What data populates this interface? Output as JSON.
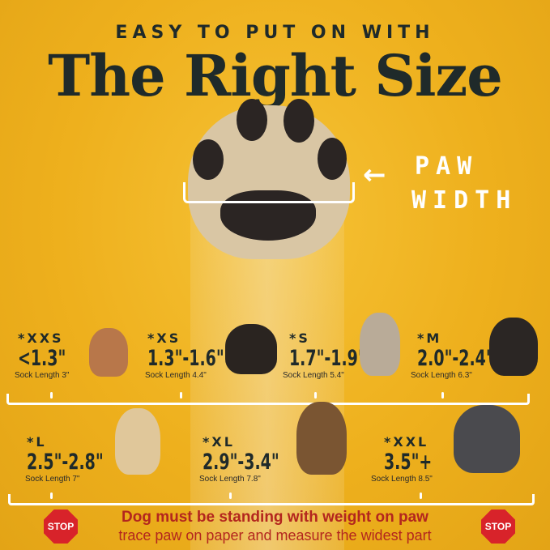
{
  "header": {
    "kicker": "EASY TO PUT ON WITH",
    "title": "The Right Size"
  },
  "paw_label": {
    "line1": "PAW",
    "line2": "WIDTH",
    "arrow_icon": "arrow-left"
  },
  "sizes": [
    {
      "size": "*XXS",
      "range": "<1.3\"",
      "sock": "Sock Length 3\""
    },
    {
      "size": "*XS",
      "range": "1.3\"-1.6\"",
      "sock": "Sock Length 4.4\""
    },
    {
      "size": "*S",
      "range": "1.7\"-1.9\"",
      "sock": "Sock Length 5.4\""
    },
    {
      "size": "*M",
      "range": "2.0\"-2.4\"",
      "sock": "Sock Length 6.3\""
    },
    {
      "size": "*L",
      "range": "2.5\"-2.8\"",
      "sock": "Sock Length 7\""
    },
    {
      "size": "*XL",
      "range": "2.9\"-3.4\"",
      "sock": "Sock Length 7.8\""
    },
    {
      "size": "*XXL",
      "range": "3.5\"+",
      "sock": "Sock Length 8.5\""
    }
  ],
  "dog_colors": [
    "#b8774a",
    "#2a2420",
    "#b9ab98",
    "#2b2624",
    "#e0c79a",
    "#7a5532",
    "#4a4a4e"
  ],
  "warning": {
    "stop": "STOP",
    "line1": "Dog must be standing with weight on paw",
    "line2": "trace paw on paper and measure the widest part"
  },
  "colors": {
    "background": "#eeb01d",
    "title": "#1f2a2a",
    "warning": "#b3261e",
    "stop": "#d8232a"
  }
}
